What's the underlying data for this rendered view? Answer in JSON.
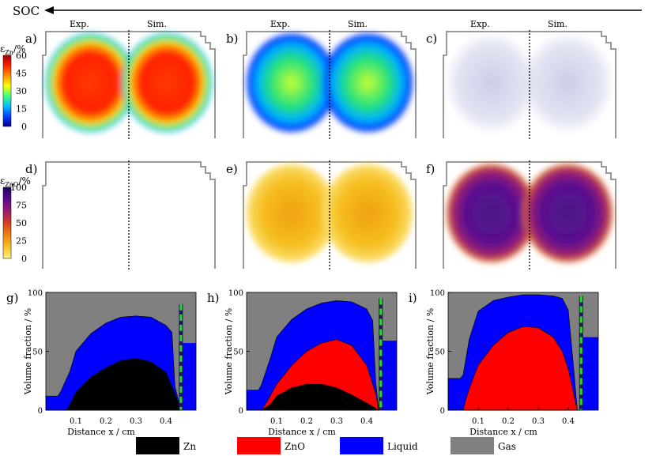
{
  "header": {
    "soc_label": "SOC"
  },
  "map_panels": [
    {
      "letter": "a)",
      "exp": "Exp.",
      "sim": "Sim.",
      "kind": "zn",
      "level": 0.85
    },
    {
      "letter": "b)",
      "exp": "Exp.",
      "sim": "Sim.",
      "kind": "zn",
      "level": 0.45
    },
    {
      "letter": "c)",
      "exp": "Exp.",
      "sim": "Sim.",
      "kind": "zn",
      "level": 0.08
    },
    {
      "letter": "d)",
      "kind": "zno",
      "level": 0.0
    },
    {
      "letter": "e)",
      "kind": "zno",
      "level": 0.25
    },
    {
      "letter": "f)",
      "kind": "zno",
      "level": 0.8
    }
  ],
  "colorbars": {
    "zn": {
      "label_base": "ε",
      "label_sub": "Zn",
      "label_unit": "/%",
      "ticks": [
        "60",
        "45",
        "30",
        "15",
        "0"
      ],
      "colors": [
        "#a00000",
        "#ff2000",
        "#ff9000",
        "#ffff00",
        "#40ff80",
        "#00c0ff",
        "#0040ff",
        "#000090"
      ]
    },
    "zno": {
      "label_base": "ε",
      "label_sub": "ZnO",
      "label_unit": "/%",
      "ticks": [
        "100",
        "75",
        "50",
        "25",
        "0"
      ],
      "colors": [
        "#1a0060",
        "#5a0a90",
        "#9a1a70",
        "#d04020",
        "#f08010",
        "#f8c020",
        "#fff08a"
      ]
    }
  },
  "chart_data": [
    {
      "type": "area",
      "panel": "g)",
      "ylabel": "Volume fraction  /  %",
      "xlabel": "Distance x  /  cm",
      "xticks": [
        "0.1",
        "0.2",
        "0.3",
        "0.4"
      ],
      "yticks": [
        "0",
        "50",
        "100"
      ],
      "xlim": [
        0,
        0.5
      ],
      "ylim": [
        0,
        100
      ],
      "series": [
        {
          "name": "Zn",
          "x": [
            0.0,
            0.04,
            0.07,
            0.08,
            0.1,
            0.15,
            0.2,
            0.25,
            0.3,
            0.35,
            0.4,
            0.43,
            0.45
          ],
          "values": [
            0,
            0,
            0,
            5,
            15,
            28,
            36,
            42,
            44,
            41,
            32,
            14,
            0
          ]
        },
        {
          "name": "ZnO",
          "x": [
            0.0,
            0.45
          ],
          "values": [
            0,
            0
          ]
        },
        {
          "name": "Liquid",
          "x": [
            0.0,
            0.04,
            0.05,
            0.08,
            0.1,
            0.15,
            0.2,
            0.25,
            0.3,
            0.35,
            0.4,
            0.42,
            0.43,
            0.45
          ],
          "values": [
            12,
            12,
            16,
            33,
            50,
            65,
            74,
            79,
            80,
            79,
            72,
            66,
            20,
            0
          ]
        }
      ],
      "right_column": {
        "top": 57,
        "marker_top": 90,
        "marker_bottom": 0,
        "from": 0.455,
        "to": 0.5
      }
    },
    {
      "type": "area",
      "panel": "h)",
      "ylabel": "Volume fraction  /  %",
      "xlabel": "Distance x  /  cm",
      "xticks": [
        "0.1",
        "0.2",
        "0.3",
        "0.4"
      ],
      "yticks": [
        "0",
        "50",
        "100"
      ],
      "xlim": [
        0,
        0.5
      ],
      "ylim": [
        0,
        100
      ],
      "series": [
        {
          "name": "Zn",
          "x": [
            0.0,
            0.05,
            0.08,
            0.1,
            0.15,
            0.2,
            0.25,
            0.3,
            0.35,
            0.4,
            0.44
          ],
          "values": [
            0,
            0,
            5,
            12,
            19,
            22,
            22,
            19,
            13,
            6,
            0
          ]
        },
        {
          "name": "ZnO",
          "x": [
            0.0,
            0.05,
            0.07,
            0.1,
            0.15,
            0.2,
            0.25,
            0.3,
            0.35,
            0.4,
            0.43,
            0.44
          ],
          "values": [
            0,
            0,
            8,
            22,
            38,
            50,
            57,
            60,
            55,
            38,
            14,
            0
          ]
        },
        {
          "name": "Liquid",
          "x": [
            0.0,
            0.04,
            0.05,
            0.08,
            0.1,
            0.15,
            0.2,
            0.25,
            0.3,
            0.35,
            0.4,
            0.42,
            0.43,
            0.44
          ],
          "values": [
            17,
            17,
            22,
            45,
            62,
            77,
            86,
            91,
            93,
            92,
            86,
            76,
            24,
            0
          ]
        }
      ],
      "right_column": {
        "top": 59,
        "marker_top": 95,
        "marker_bottom": 0,
        "from": 0.452,
        "to": 0.5
      }
    },
    {
      "type": "area",
      "panel": "i)",
      "ylabel": "Volume fraction  /  %",
      "xlabel": "Distance x  /  cm",
      "xticks": [
        "0.1",
        "0.2",
        "0.3",
        "0.4"
      ],
      "yticks": [
        "0",
        "50",
        "100"
      ],
      "xlim": [
        0,
        0.5
      ],
      "ylim": [
        0,
        100
      ],
      "series": [
        {
          "name": "Zn",
          "x": [
            0.0,
            0.45
          ],
          "values": [
            0,
            0
          ]
        },
        {
          "name": "ZnO",
          "x": [
            0.0,
            0.05,
            0.06,
            0.08,
            0.1,
            0.15,
            0.2,
            0.25,
            0.3,
            0.35,
            0.38,
            0.4,
            0.43
          ],
          "values": [
            0,
            0,
            10,
            25,
            38,
            55,
            66,
            71,
            70,
            62,
            50,
            35,
            0
          ]
        },
        {
          "name": "Liquid",
          "x": [
            0.0,
            0.04,
            0.05,
            0.07,
            0.1,
            0.15,
            0.2,
            0.25,
            0.3,
            0.35,
            0.38,
            0.4,
            0.42,
            0.43
          ],
          "values": [
            27,
            27,
            30,
            60,
            84,
            93,
            96,
            98,
            98,
            97,
            95,
            85,
            30,
            0
          ]
        }
      ],
      "right_column": {
        "top": 62,
        "marker_top": 97,
        "marker_bottom": 0,
        "from": 0.448,
        "to": 0.5
      }
    }
  ],
  "legend": [
    {
      "name": "Zn",
      "color": "#000000"
    },
    {
      "name": "ZnO",
      "color": "#ff0000"
    },
    {
      "name": "Liquid",
      "color": "#0000ff"
    },
    {
      "name": "Gas",
      "color": "#808080"
    }
  ],
  "colors": {
    "gas": "#808080",
    "liquid": "#0000ff",
    "zno": "#ff0000",
    "zn": "#000000",
    "marker": "#22dd22",
    "marker_dark": "#1a1a5a",
    "frame": "#999999"
  }
}
